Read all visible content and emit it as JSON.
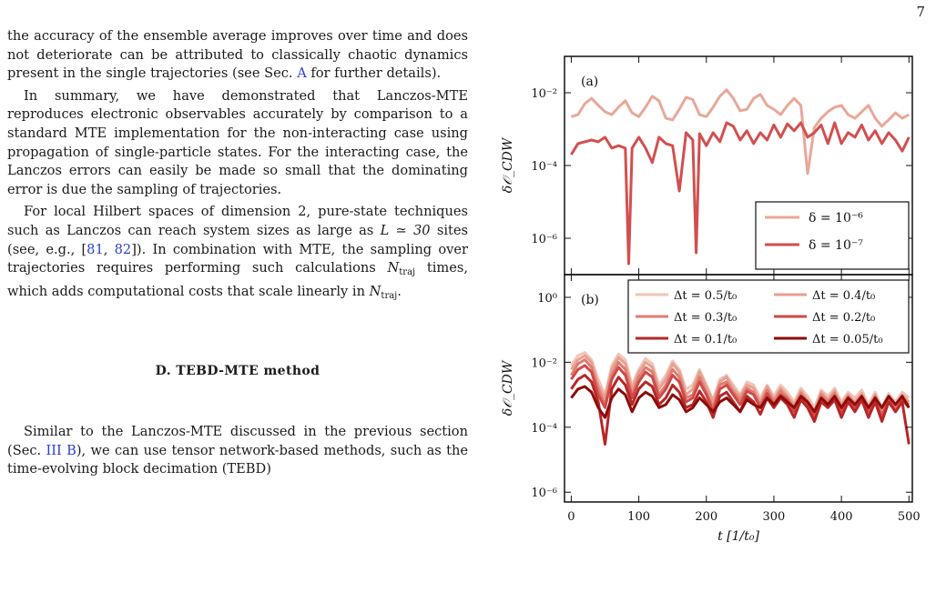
{
  "page_number": "7",
  "paragraphs": {
    "p1": "the accuracy of the ensemble average improves over time and does not deteriorate can be attributed to classically chaotic dynamics present in the single trajectories (see Sec. ",
    "p1_ref": "A",
    "p1_end": " for further details).",
    "p2": "In summary, we have demonstrated that Lanczos-MTE reproduces electronic observables accurately by comparison to a standard MTE implementation for the non-interacting case using propagation of single-particle states. For the interacting case, the Lanczos errors can easily be made so small that the dominating error is due the sampling of trajectories.",
    "p3_a": "For local Hilbert spaces of dimension 2, pure-state techniques such as Lanczos can reach system sizes as large as ",
    "p3_L": "L ≃ 30",
    "p3_b": " sites (see, e.g., [",
    "p3_ref1": "81",
    "p3_sep": ", ",
    "p3_ref2": "82",
    "p3_c": "]). In combination with MTE, the sampling over trajectories requires performing such calculations ",
    "p3_N1": "N",
    "p3_N1_sub": "traj",
    "p3_d": " times, which adds computational costs that scale linearly in ",
    "p3_N2": "N",
    "p3_N2_sub": "traj",
    "p3_e": ".",
    "p4_a": "Similar to the Lanczos-MTE discussed in the previous section (Sec. ",
    "p4_ref": "III B",
    "p4_b": "), we can use tensor network-based methods, such as the time-evolving block decimation (TEBD)"
  },
  "section_heading": "D.    TEBD-MTE method",
  "chart_data": [
    {
      "type": "line",
      "panel_label": "(a)",
      "ylabel": "δ𝒪_CDW",
      "yscale": "log",
      "ylim": [
        1e-07,
        0.1
      ],
      "xlim": [
        -10,
        505
      ],
      "yticks": [
        {
          "v": 0.01,
          "label": "10⁻²"
        },
        {
          "v": 0.0001,
          "label": "10⁻⁴"
        },
        {
          "v": 1e-06,
          "label": "10⁻⁶"
        }
      ],
      "legend_position": "bottom-right",
      "series": [
        {
          "name": "δ = 10⁻⁶",
          "color": "#e8a898",
          "x": [
            0,
            10,
            20,
            30,
            40,
            50,
            60,
            70,
            80,
            90,
            100,
            110,
            120,
            130,
            140,
            150,
            160,
            170,
            180,
            190,
            200,
            210,
            220,
            230,
            240,
            250,
            260,
            270,
            280,
            290,
            300,
            310,
            320,
            330,
            340,
            350,
            360,
            370,
            380,
            390,
            400,
            410,
            420,
            430,
            440,
            450,
            460,
            470,
            480,
            490,
            500
          ],
          "y": [
            0.0022,
            0.0025,
            0.005,
            0.007,
            0.0045,
            0.003,
            0.0025,
            0.004,
            0.006,
            0.0028,
            0.0022,
            0.004,
            0.008,
            0.006,
            0.002,
            0.0018,
            0.0035,
            0.0075,
            0.0065,
            0.0025,
            0.0022,
            0.004,
            0.008,
            0.012,
            0.007,
            0.0032,
            0.0035,
            0.007,
            0.009,
            0.0045,
            0.0035,
            0.0025,
            0.0045,
            0.007,
            0.0045,
            6e-05,
            0.0011,
            0.002,
            0.003,
            0.004,
            0.0045,
            0.0025,
            0.002,
            0.003,
            0.0045,
            0.002,
            0.0012,
            0.0018,
            0.0028,
            0.002,
            0.0025
          ]
        },
        {
          "name": "δ = 10⁻⁷",
          "color": "#d24f4f",
          "x": [
            0,
            10,
            20,
            30,
            40,
            50,
            60,
            70,
            80,
            85,
            90,
            100,
            110,
            120,
            130,
            140,
            150,
            160,
            170,
            180,
            185,
            190,
            200,
            210,
            220,
            230,
            240,
            250,
            260,
            270,
            280,
            290,
            300,
            310,
            320,
            330,
            340,
            350,
            360,
            370,
            380,
            390,
            400,
            410,
            420,
            430,
            440,
            450,
            460,
            470,
            480,
            490,
            500
          ],
          "y": [
            0.0002,
            0.0004,
            0.00045,
            0.0005,
            0.00045,
            0.0006,
            0.0003,
            0.00035,
            0.0003,
            2e-07,
            0.0003,
            0.0006,
            0.0003,
            0.00012,
            0.0006,
            0.0004,
            0.00035,
            2e-05,
            0.0008,
            0.0005,
            4e-07,
            0.00075,
            0.00035,
            0.0008,
            0.00045,
            0.0015,
            0.0012,
            0.0005,
            0.0009,
            0.0004,
            0.0008,
            0.0005,
            0.0013,
            0.0006,
            0.0014,
            0.0009,
            0.0015,
            0.0006,
            0.0008,
            0.0013,
            0.0004,
            0.0015,
            0.0004,
            0.0008,
            0.0006,
            0.0013,
            0.0005,
            0.0009,
            0.0004,
            0.0008,
            0.0005,
            0.00025,
            0.0006
          ]
        }
      ]
    },
    {
      "type": "line",
      "panel_label": "(b)",
      "ylabel": "δ𝒪_CDW",
      "xlabel": "t [1/t₀]",
      "yscale": "log",
      "ylim": [
        5e-07,
        5
      ],
      "xlim": [
        -10,
        505
      ],
      "xticks": [
        0,
        100,
        200,
        300,
        400,
        500
      ],
      "yticks": [
        {
          "v": 1,
          "label": "10⁰"
        },
        {
          "v": 0.01,
          "label": "10⁻²"
        },
        {
          "v": 0.0001,
          "label": "10⁻⁴"
        },
        {
          "v": 1e-06,
          "label": "10⁻⁶"
        }
      ],
      "legend_position": "top-right",
      "series": [
        {
          "name": "Δt = 0.5/t₀",
          "color": "#f1c4b8",
          "x": [
            0,
            10,
            20,
            30,
            40,
            50,
            60,
            70,
            80,
            90,
            100,
            110,
            120,
            130,
            140,
            150,
            160,
            170,
            180,
            190,
            200,
            210,
            220,
            230,
            240,
            250,
            260,
            270,
            280,
            290,
            300,
            310,
            320,
            330,
            340,
            350,
            360,
            370,
            380,
            390,
            400,
            410,
            420,
            430,
            440,
            450,
            460,
            470,
            480,
            490,
            500
          ],
          "y": [
            0.008,
            0.016,
            0.02,
            0.012,
            0.003,
            0.001,
            0.008,
            0.018,
            0.012,
            0.002,
            0.006,
            0.013,
            0.009,
            0.002,
            0.004,
            0.011,
            0.006,
            0.0015,
            0.002,
            0.006,
            0.002,
            0.0007,
            0.003,
            0.004,
            0.002,
            0.001,
            0.0025,
            0.002,
            0.0008,
            0.002,
            0.0009,
            0.002,
            0.0012,
            0.0006,
            0.0016,
            0.0009,
            0.0004,
            0.0014,
            0.0009,
            0.0016,
            0.0006,
            0.0012,
            0.0008,
            0.0014,
            0.0005,
            0.0012,
            0.0004,
            0.0011,
            0.0006,
            0.0012,
            0.0008
          ]
        },
        {
          "name": "Δt = 0.4/t₀",
          "color": "#e8a090",
          "x": [
            0,
            10,
            20,
            30,
            40,
            50,
            60,
            70,
            80,
            90,
            100,
            110,
            120,
            130,
            140,
            150,
            160,
            170,
            180,
            190,
            200,
            210,
            220,
            230,
            240,
            250,
            260,
            270,
            280,
            290,
            300,
            310,
            320,
            330,
            340,
            350,
            360,
            370,
            380,
            390,
            400,
            410,
            420,
            430,
            440,
            450,
            460,
            470,
            480,
            490,
            500
          ],
          "y": [
            0.006,
            0.012,
            0.016,
            0.01,
            0.002,
            0.0008,
            0.006,
            0.014,
            0.009,
            0.0015,
            0.005,
            0.01,
            0.007,
            0.0015,
            0.003,
            0.009,
            0.005,
            0.001,
            0.0015,
            0.005,
            0.0018,
            0.0006,
            0.0025,
            0.0035,
            0.0015,
            0.0009,
            0.002,
            0.0016,
            0.0006,
            0.0018,
            0.0007,
            0.0016,
            0.0009,
            0.0005,
            0.0013,
            0.0007,
            0.0003,
            0.0012,
            0.0007,
            0.0013,
            0.0005,
            0.001,
            0.0006,
            0.0011,
            0.0004,
            0.001,
            0.0003,
            0.0009,
            0.0005,
            0.001,
            0.0006
          ]
        },
        {
          "name": "Δt = 0.3/t₀",
          "color": "#de7c72",
          "x": [
            0,
            10,
            20,
            30,
            40,
            50,
            60,
            70,
            80,
            90,
            100,
            110,
            120,
            130,
            140,
            150,
            160,
            170,
            180,
            190,
            200,
            210,
            220,
            230,
            240,
            250,
            260,
            270,
            280,
            290,
            300,
            310,
            320,
            330,
            340,
            350,
            360,
            370,
            380,
            390,
            400,
            410,
            420,
            430,
            440,
            450,
            460,
            470,
            480,
            490,
            500
          ],
          "y": [
            0.004,
            0.009,
            0.012,
            0.007,
            0.0015,
            0.0005,
            0.004,
            0.01,
            0.006,
            0.001,
            0.0035,
            0.007,
            0.005,
            0.001,
            0.002,
            0.006,
            0.0035,
            0.0008,
            0.001,
            0.0035,
            0.0012,
            0.0004,
            0.002,
            0.0025,
            0.0012,
            0.0007,
            0.0016,
            0.0012,
            0.0005,
            0.0014,
            0.0006,
            0.0013,
            0.0008,
            0.0004,
            0.0011,
            0.0006,
            0.00025,
            0.001,
            0.0006,
            0.0011,
            0.0004,
            0.0009,
            0.0005,
            0.0009,
            0.0003,
            0.0009,
            0.00025,
            0.0008,
            0.0004,
            0.0008,
            0.0005
          ]
        },
        {
          "name": "Δt = 0.2/t₀",
          "color": "#cf4a48",
          "x": [
            0,
            10,
            20,
            30,
            40,
            50,
            60,
            70,
            80,
            90,
            100,
            110,
            120,
            130,
            140,
            150,
            160,
            170,
            180,
            190,
            200,
            210,
            220,
            230,
            240,
            250,
            260,
            270,
            280,
            290,
            300,
            310,
            320,
            330,
            340,
            350,
            360,
            370,
            380,
            390,
            400,
            410,
            420,
            430,
            440,
            450,
            460,
            470,
            480,
            490,
            500
          ],
          "y": [
            0.003,
            0.006,
            0.008,
            0.005,
            0.001,
            0.0004,
            0.003,
            0.007,
            0.004,
            0.0008,
            0.0025,
            0.005,
            0.0035,
            0.0008,
            0.0015,
            0.004,
            0.0025,
            0.0006,
            0.0008,
            0.0025,
            0.001,
            0.0003,
            0.0015,
            0.002,
            0.001,
            0.0005,
            0.0013,
            0.001,
            0.0004,
            0.0011,
            0.0005,
            0.001,
            0.0007,
            0.0003,
            0.0009,
            0.0005,
            0.0002,
            0.0008,
            0.0005,
            0.0009,
            0.0003,
            0.0007,
            0.0004,
            0.0008,
            0.0003,
            0.0007,
            0.0002,
            0.0007,
            0.0003,
            0.0007,
            0.0004
          ]
        },
        {
          "name": "Δt = 0.1/t₀",
          "color": "#b82626",
          "x": [
            0,
            10,
            20,
            30,
            40,
            50,
            60,
            70,
            80,
            90,
            100,
            110,
            120,
            130,
            140,
            150,
            160,
            170,
            180,
            190,
            200,
            210,
            220,
            230,
            240,
            250,
            260,
            270,
            280,
            290,
            300,
            310,
            320,
            330,
            340,
            350,
            360,
            370,
            380,
            390,
            400,
            410,
            420,
            430,
            440,
            450,
            460,
            470,
            480,
            490,
            500
          ],
          "y": [
            0.0015,
            0.003,
            0.004,
            0.0025,
            0.0006,
            3e-05,
            0.0015,
            0.0035,
            0.002,
            0.0005,
            0.0015,
            0.0025,
            0.0018,
            0.0005,
            0.0008,
            0.002,
            0.0012,
            0.0004,
            0.0005,
            0.0013,
            0.0006,
            0.0002,
            0.0009,
            0.0012,
            0.0006,
            0.0003,
            0.0009,
            0.0006,
            0.00025,
            0.0008,
            0.0004,
            0.0008,
            0.0005,
            0.0002,
            0.0007,
            0.0004,
            0.00015,
            0.0006,
            0.0004,
            0.0007,
            0.0002,
            0.0006,
            0.0003,
            0.0007,
            0.0002,
            0.0006,
            0.00015,
            0.0006,
            0.0003,
            0.0006,
            3e-05
          ]
        },
        {
          "name": "Δt = 0.05/t₀",
          "color": "#8e0b0b",
          "x": [
            0,
            10,
            20,
            30,
            40,
            50,
            60,
            70,
            80,
            90,
            100,
            110,
            120,
            130,
            140,
            150,
            160,
            170,
            180,
            190,
            200,
            210,
            220,
            230,
            240,
            250,
            260,
            270,
            280,
            290,
            300,
            310,
            320,
            330,
            340,
            350,
            360,
            370,
            380,
            390,
            400,
            410,
            420,
            430,
            440,
            450,
            460,
            470,
            480,
            490,
            500
          ],
          "y": [
            0.0008,
            0.0015,
            0.0018,
            0.0012,
            0.0004,
            0.0002,
            0.0008,
            0.0015,
            0.001,
            0.0003,
            0.0008,
            0.0012,
            0.0009,
            0.0004,
            0.0005,
            0.001,
            0.0007,
            0.0003,
            0.0004,
            0.0008,
            0.0005,
            0.0003,
            0.0006,
            0.0008,
            0.0005,
            0.0003,
            0.0007,
            0.0005,
            0.0004,
            0.0008,
            0.0005,
            0.0009,
            0.0006,
            0.0004,
            0.0009,
            0.0006,
            0.0003,
            0.0008,
            0.0005,
            0.0009,
            0.0004,
            0.0008,
            0.0005,
            0.0009,
            0.0004,
            0.0008,
            0.0004,
            0.0009,
            0.0005,
            0.0009,
            0.0004
          ]
        }
      ]
    }
  ]
}
